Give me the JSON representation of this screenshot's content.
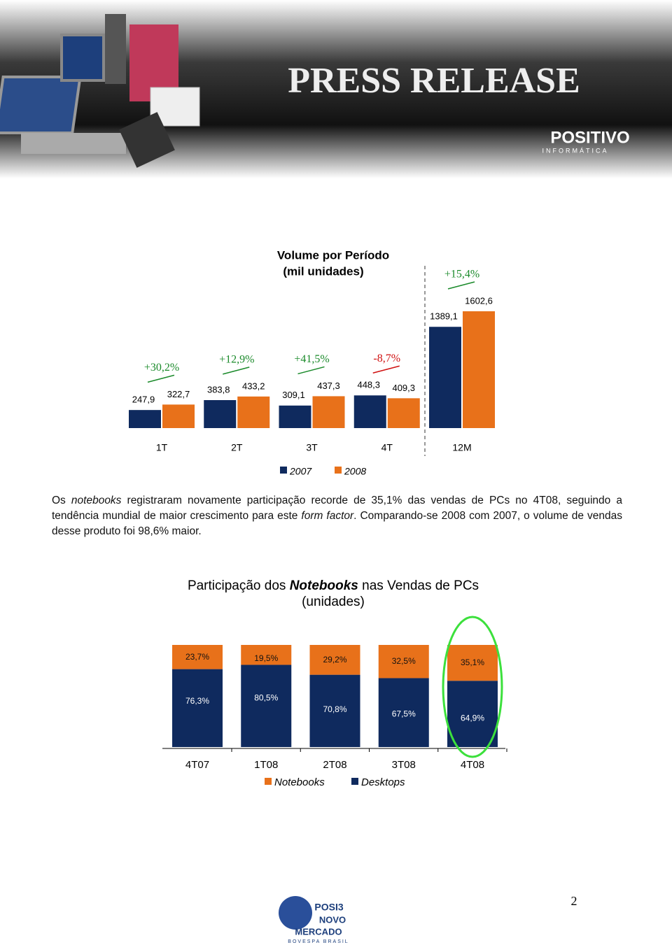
{
  "header": {
    "title": "PRESS RELEASE",
    "brand": "POSITIVO",
    "brand_sub": "INFORMÁTICA"
  },
  "paragraph": [
    "Os ",
    "notebooks",
    " registraram novamente participação recorde de 35,1% das vendas de PCs no 4T08, seguindo a tendência mundial de maior crescimento para este ",
    "form factor",
    ". Comparando-se 2008 com 2007, o volume de vendas desse produto foi 98,6% maior."
  ],
  "chart_data": [
    {
      "type": "bar",
      "title": "Volume por Período",
      "subtitle": "(mil unidades)",
      "categories": [
        "1T",
        "2T",
        "3T",
        "4T",
        "12M"
      ],
      "series": [
        {
          "name": "2007",
          "color": "#0f2a5e",
          "values": [
            247.9,
            383.8,
            309.1,
            448.3,
            1389.1
          ],
          "value_labels": [
            "247,9",
            "383,8",
            "309,1",
            "448,3",
            "1389,1"
          ]
        },
        {
          "name": "2008",
          "color": "#e8711a",
          "values": [
            322.7,
            433.2,
            437.3,
            409.3,
            1602.6
          ],
          "value_labels": [
            "322,7",
            "433,2",
            "437,3",
            "409,3",
            "1602,6"
          ]
        }
      ],
      "annotations": [
        "+30,2%",
        "+12,9%",
        "+41,5%",
        "-8,7%",
        "+15,4%"
      ]
    },
    {
      "type": "stacked_bar",
      "title_parts": [
        "Participação dos ",
        "Notebooks",
        " nas Vendas de PCs"
      ],
      "subtitle": "(unidades)",
      "categories": [
        "4T07",
        "1T08",
        "2T08",
        "3T08",
        "4T08"
      ],
      "series": [
        {
          "name": "Notebooks",
          "color": "#e8711a",
          "values": [
            23.7,
            19.5,
            29.2,
            32.5,
            35.1
          ],
          "value_labels": [
            "23,7%",
            "19,5%",
            "29,2%",
            "32,5%",
            "35,1%"
          ]
        },
        {
          "name": "Desktops",
          "color": "#0f2a5e",
          "values": [
            76.3,
            80.5,
            70.8,
            67.5,
            64.9
          ],
          "value_labels": [
            "76,3%",
            "80,5%",
            "70,8%",
            "67,5%",
            "64,9%"
          ]
        }
      ]
    }
  ],
  "footer": {
    "page_number": "2",
    "logo": [
      "POSI3",
      "NOVO",
      "MERCADO",
      "BOVESPA BRASIL"
    ]
  }
}
